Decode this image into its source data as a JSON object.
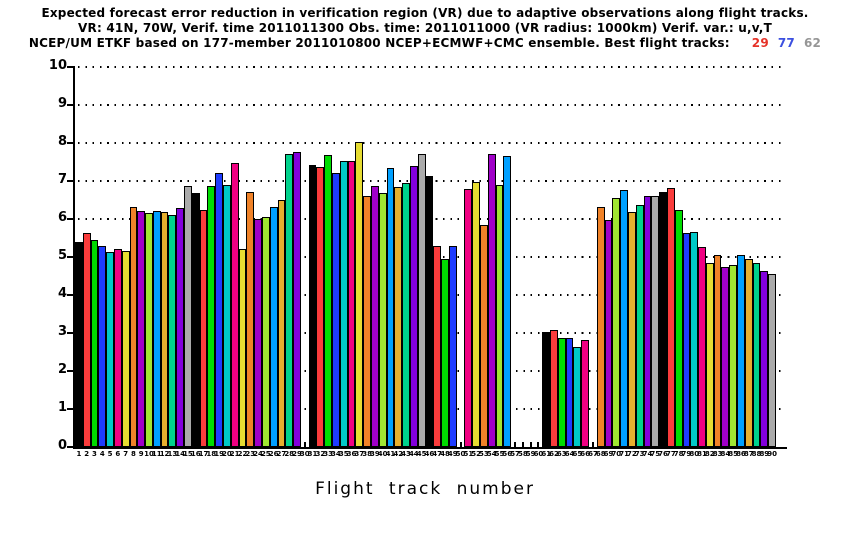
{
  "title": {
    "line1": "Expected forecast error reduction in verification region (VR) due to adaptive observations along flight tracks.",
    "line2": "VR: 41N, 70W, Verif. time 2011011300 Obs. time: 2011011000 (VR radius: 1000km)  Verif. var.: u,v,T",
    "line3_prefix": "NCEP/UM ETKF based on 177-member 2011010800 NCEP+ECMWF+CMC ensemble. Best flight tracks:",
    "best_tracks": [
      {
        "label": "29",
        "color": "#e63228"
      },
      {
        "label": "77",
        "color": "#3c50e0"
      },
      {
        "label": "62",
        "color": "#969696"
      }
    ]
  },
  "chart_data": {
    "type": "bar",
    "title": "Expected forecast error reduction in verification region (VR) due to adaptive observations along flight tracks.",
    "xlabel": "Flight track number",
    "ylabel": "",
    "ylim": [
      0,
      10
    ],
    "yticks": [
      0,
      1,
      2,
      3,
      4,
      5,
      6,
      7,
      8,
      9,
      10
    ],
    "grid": "horizontal-dotted",
    "legend": "none",
    "bar_outline_color": "#000000",
    "palette": [
      "#000000",
      "#fa3c3c",
      "#00dc00",
      "#1e3cff",
      "#00c8c8",
      "#f00082",
      "#e6dc32",
      "#f08228",
      "#a000c8",
      "#a0e632",
      "#00a0ff",
      "#e6af2e",
      "#00d28c",
      "#8200dc",
      "#aaaaaa"
    ],
    "color_rule": "bar color = palette[(track_number - 1) % 15]",
    "x": [
      1,
      2,
      3,
      4,
      5,
      6,
      7,
      8,
      9,
      10,
      11,
      12,
      13,
      14,
      15,
      16,
      17,
      18,
      19,
      20,
      21,
      22,
      23,
      24,
      25,
      26,
      27,
      28,
      29,
      30,
      31,
      32,
      33,
      34,
      35,
      36,
      37,
      38,
      39,
      40,
      41,
      42,
      43,
      44,
      45,
      46,
      47,
      48,
      49,
      50,
      51,
      52,
      53,
      54,
      55,
      56,
      57,
      58,
      59,
      60,
      61,
      62,
      63,
      64,
      65,
      66,
      67,
      68,
      69,
      70,
      71,
      72,
      73,
      74,
      75,
      76,
      77,
      78,
      79,
      80,
      81,
      82,
      83,
      84,
      85,
      86,
      87,
      88,
      89,
      90
    ],
    "values": [
      5.4,
      5.62,
      5.45,
      5.28,
      5.12,
      5.22,
      5.15,
      6.32,
      6.22,
      6.15,
      6.2,
      6.18,
      6.1,
      6.3,
      6.88,
      6.68,
      6.25,
      6.88,
      7.2,
      6.9,
      7.47,
      5.22,
      6.7,
      6.0,
      6.05,
      6.32,
      6.5,
      7.7,
      7.77,
      null,
      7.42,
      7.36,
      7.68,
      7.22,
      7.53,
      7.52,
      8.02,
      6.6,
      6.86,
      6.68,
      7.34,
      6.85,
      6.95,
      7.39,
      7.7,
      7.12,
      5.3,
      4.96,
      5.3,
      null,
      6.8,
      6.97,
      5.84,
      7.7,
      6.9,
      7.65,
      null,
      null,
      null,
      null,
      3.02,
      3.07,
      2.86,
      2.88,
      2.62,
      2.82,
      null,
      6.32,
      5.98,
      6.56,
      6.77,
      6.19,
      6.36,
      6.61,
      6.61,
      6.72,
      6.82,
      6.24,
      5.64,
      5.67,
      5.27,
      4.84,
      5.05,
      4.75,
      4.8,
      5.05,
      4.94,
      4.85,
      4.64,
      4.55
    ]
  }
}
